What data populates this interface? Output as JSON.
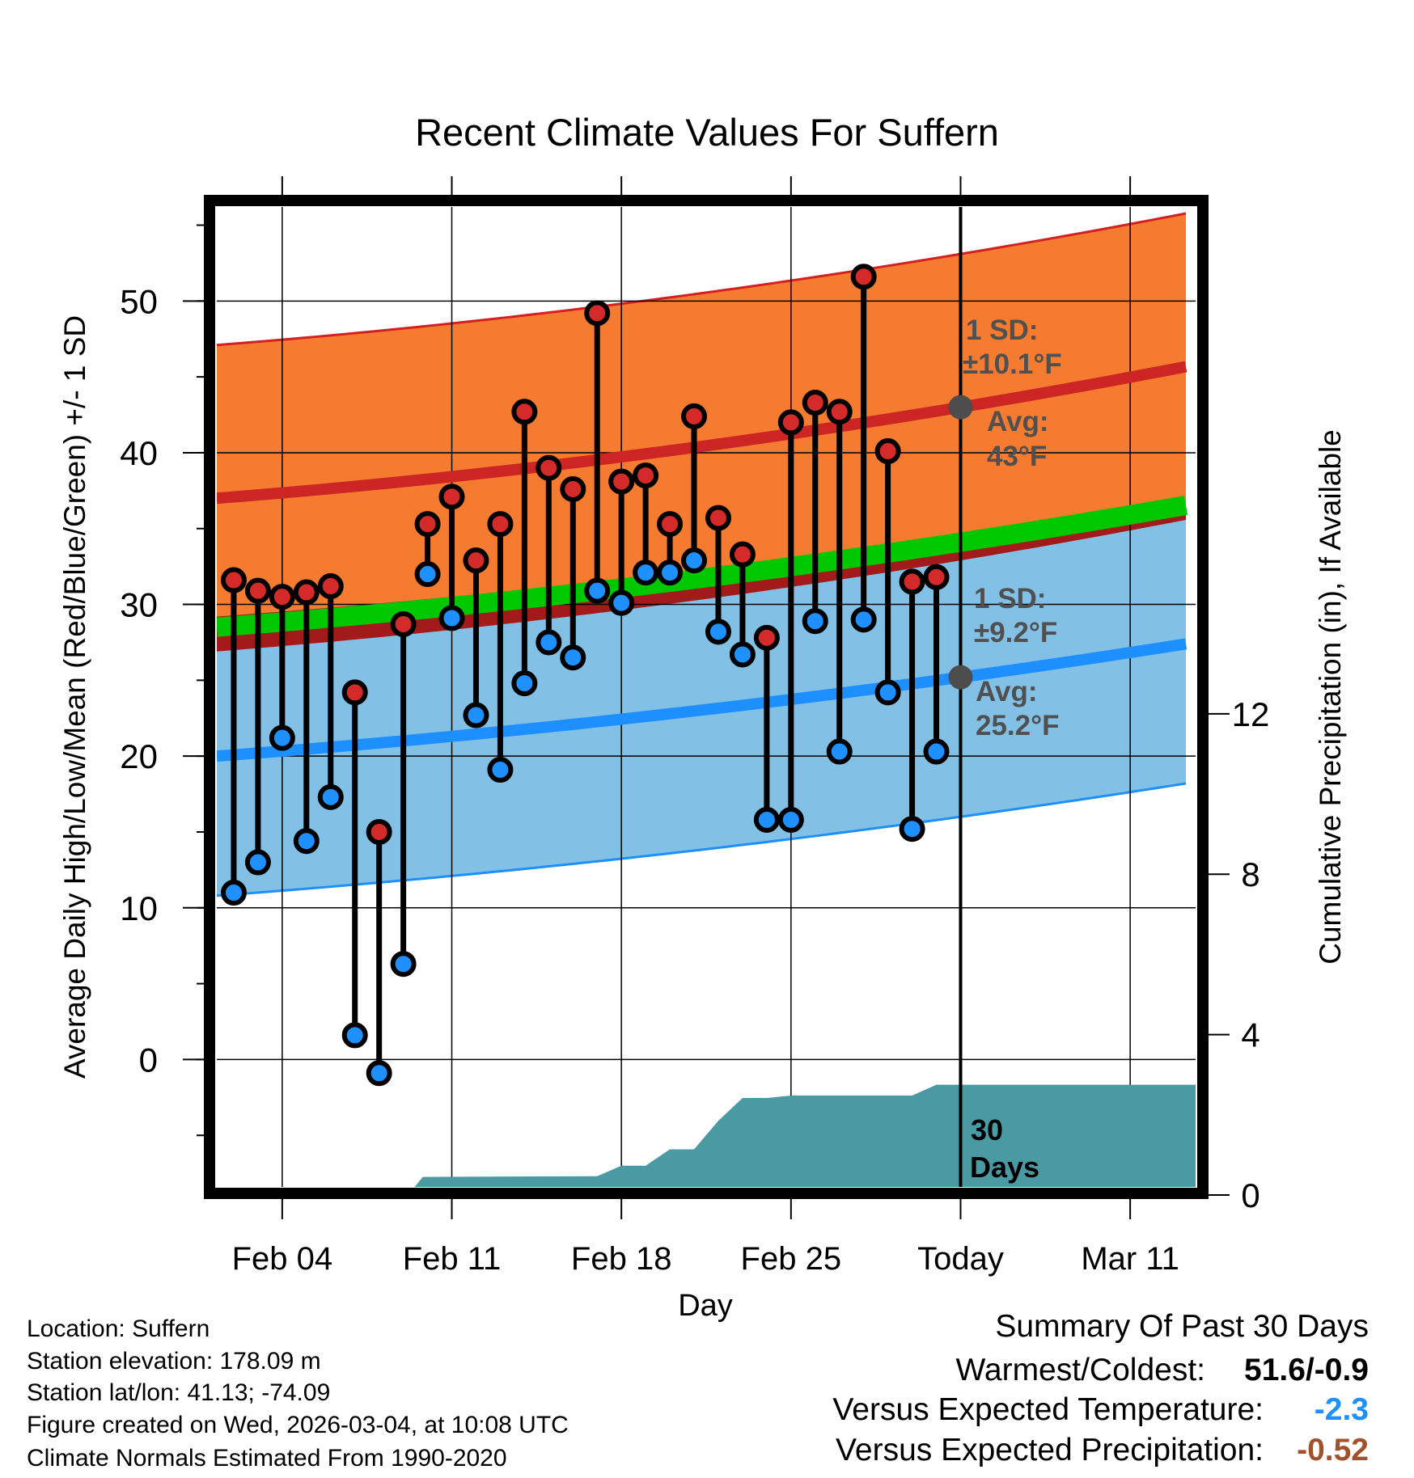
{
  "chart_data": {
    "type": "line",
    "title": "Recent Climate Values For Suffern",
    "xlabel": "Day",
    "ylabel": "Average Daily High/Low/Mean (Red/Blue/Green) +/- 1 SD",
    "y2label": "Cumulative Precipitation (in), If Available",
    "ylim": [
      -8.4,
      56.2
    ],
    "y2lim": [
      0,
      24.8
    ],
    "yticks": [
      0,
      10,
      20,
      30,
      40,
      50
    ],
    "y2ticks": [
      0,
      4,
      8,
      12
    ],
    "xticks": [
      {
        "day": 4,
        "label": "Feb 04"
      },
      {
        "day": 11,
        "label": "Feb 11"
      },
      {
        "day": 18,
        "label": "Feb 18"
      },
      {
        "day": 25,
        "label": "Feb 25"
      },
      {
        "day": 32,
        "label": "Today"
      },
      {
        "day": 39,
        "label": "Mar 11"
      }
    ],
    "xlim_days": [
      1.3,
      41.7
    ],
    "today_day": 32,
    "grid": true,
    "days": [
      "Feb 02",
      "Feb 03",
      "Feb 04",
      "Feb 05",
      "Feb 06",
      "Feb 07",
      "Feb 08",
      "Feb 09",
      "Feb 10",
      "Feb 11",
      "Feb 12",
      "Feb 13",
      "Feb 14",
      "Feb 15",
      "Feb 16",
      "Feb 17",
      "Feb 18",
      "Feb 19",
      "Feb 20",
      "Feb 21",
      "Feb 22",
      "Feb 23",
      "Feb 24",
      "Feb 25",
      "Feb 26",
      "Feb 27",
      "Feb 28",
      "Mar 01",
      "Mar 02",
      "Mar 03"
    ],
    "day_index": [
      2,
      3,
      4,
      5,
      6,
      7,
      8,
      9,
      10,
      11,
      12,
      13,
      14,
      15,
      16,
      17,
      18,
      19,
      20,
      21,
      22,
      23,
      24,
      25,
      26,
      27,
      28,
      29,
      30,
      31
    ],
    "series": [
      {
        "name": "Daily High",
        "color": "#d42a2a",
        "values": [
          31.6,
          30.9,
          30.5,
          30.8,
          31.2,
          24.2,
          15.0,
          28.7,
          35.3,
          37.1,
          32.9,
          35.3,
          42.7,
          39.0,
          37.6,
          49.2,
          38.1,
          38.5,
          35.3,
          42.4,
          35.7,
          33.3,
          27.8,
          42.0,
          43.3,
          42.7,
          51.6,
          40.1,
          31.5,
          31.8
        ]
      },
      {
        "name": "Daily Low",
        "color": "#1e90ff",
        "values": [
          11.0,
          13.0,
          21.2,
          14.4,
          17.3,
          1.6,
          -0.9,
          6.3,
          32.0,
          29.1,
          22.7,
          19.1,
          24.8,
          27.5,
          26.5,
          30.9,
          30.1,
          32.1,
          32.1,
          32.9,
          28.2,
          26.7,
          15.8,
          15.8,
          28.9,
          20.3,
          29.0,
          24.2,
          15.2,
          20.3
        ]
      },
      {
        "name": "Cumulative Precipitation (in)",
        "color": "#4a9aa3",
        "axis": "right",
        "x": [
          1.3,
          9.2,
          9.8,
          17.0,
          18.0,
          19.0,
          20.0,
          21.0,
          22.0,
          23.0,
          24.0,
          25.0,
          30.0,
          31.0,
          41.7
        ],
        "values": [
          0,
          0,
          0.45,
          0.47,
          0.73,
          0.73,
          1.14,
          1.14,
          1.85,
          2.42,
          2.42,
          2.48,
          2.48,
          2.75,
          2.75
        ]
      }
    ],
    "normals": {
      "avg_high": {
        "days": [
          1.3,
          32,
          41.7
        ],
        "values": [
          37.0,
          43.0,
          45.8
        ],
        "sd": 10.1
      },
      "avg_low": {
        "days": [
          1.3,
          32,
          41.7
        ],
        "values": [
          20.0,
          25.2,
          27.5
        ],
        "sd": 9.2
      }
    },
    "annotations": {
      "high_sd_label": "1 SD:",
      "high_sd_value": "±10.1°F",
      "high_avg_label": "Avg:",
      "high_avg_value": "43°F",
      "low_sd_label": "1 SD:",
      "low_sd_value": "±9.2°F",
      "low_avg_label": "Avg:",
      "low_avg_value": "25.2°F",
      "period_num": "30",
      "period_unit": "Days"
    },
    "colors": {
      "high_band": "#f47b30",
      "low_band": "#82c0e6",
      "overlap": "#a31a1a",
      "mean": "#00c800",
      "high_line": "#cd2424",
      "low_line": "#1e8fff",
      "precip": "#4a9aa3",
      "marker_avg": "#4d4d4d"
    }
  },
  "footer": {
    "location": "Location: Suffern",
    "elevation": "Station elevation: 178.09 m",
    "latlon": "Station lat/lon: 41.13; -74.09",
    "created": "Figure created on Wed, 2026-03-04, at 10:08 UTC",
    "normals": "Climate Normals Estimated From 1990-2020"
  },
  "summary": {
    "title": "Summary Of Past 30 Days",
    "warmest_label": "Warmest/Coldest:",
    "warmest_value": "51.6/-0.9",
    "temp_label": "Versus Expected Temperature:",
    "temp_value": "-2.3",
    "temp_color": "#1e90ff",
    "precip_label": "Versus Expected Precipitation:",
    "precip_value": "-0.52",
    "precip_color": "#a0522d"
  }
}
